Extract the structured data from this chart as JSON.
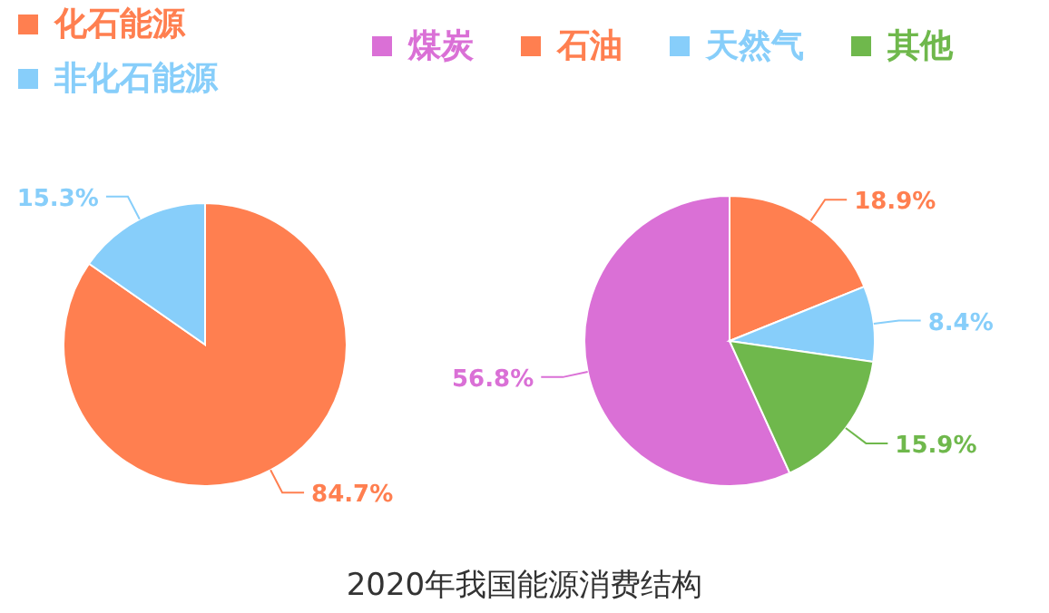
{
  "chart_data": [
    {
      "type": "pie",
      "categories": [
        "化石能源",
        "非化石能源"
      ],
      "values": [
        84.7,
        15.3
      ],
      "colors": [
        "#ff7f50",
        "#87cefa"
      ],
      "value_labels": [
        "84.7%",
        "15.3%"
      ],
      "legend": "top left",
      "annotations": [
        "2020年我国能源消费结构"
      ]
    },
    {
      "type": "pie",
      "categories": [
        "煤炭",
        "石油",
        "天然气",
        "其他"
      ],
      "values": [
        56.8,
        18.9,
        8.4,
        15.9
      ],
      "colors": [
        "#da70d6",
        "#ff7f50",
        "#87cefa",
        "#6fb84c"
      ],
      "value_labels": [
        "56.8%",
        "18.9%",
        "8.4%",
        "15.9%"
      ],
      "legend": "top"
    }
  ]
}
